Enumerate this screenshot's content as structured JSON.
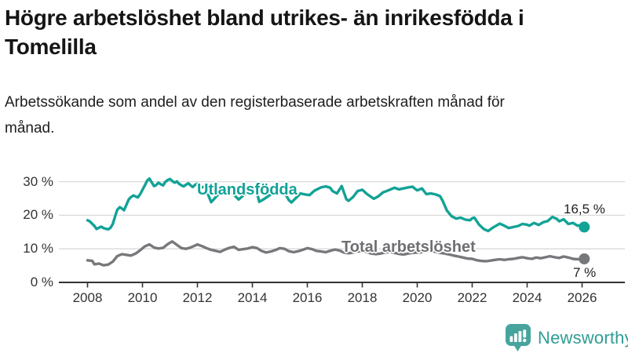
{
  "header": {
    "title": "Högre arbetslöshet bland utrikes- än inrikesfödda i Tomelilla",
    "subtitle": "Arbetssökande som andel av den registerbaserade arbetskraften månad för månad."
  },
  "footer": {
    "brand": "Newsworthy",
    "logo_icon": "bar-chart-speech-bubble-icon",
    "brand_color": "#2f9d95"
  },
  "chart_data": {
    "type": "line",
    "unit": "%",
    "grid": true,
    "x_axis": {
      "ticks": [
        2008,
        2010,
        2012,
        2014,
        2016,
        2018,
        2020,
        2022,
        2024,
        2026
      ]
    },
    "y_axis": {
      "ticks": [
        0,
        10,
        20,
        30
      ],
      "tick_suffix": " %",
      "range": [
        0,
        33
      ]
    },
    "style": {
      "grid_color": "#d9d9d9",
      "axis_color": "#333333",
      "tick_label_color": "#333333"
    },
    "series": [
      {
        "name": "Utlandsfödda",
        "color": "#12a296",
        "end_label": "16,5 %",
        "end_value": 16.5,
        "points": [
          [
            2008.0,
            18.5
          ],
          [
            2008.08,
            18.2
          ],
          [
            2008.25,
            16.8
          ],
          [
            2008.33,
            15.9
          ],
          [
            2008.42,
            16.3
          ],
          [
            2008.5,
            16.6
          ],
          [
            2008.58,
            16.2
          ],
          [
            2008.75,
            15.8
          ],
          [
            2008.83,
            16.2
          ],
          [
            2008.92,
            17.4
          ],
          [
            2009.0,
            19.6
          ],
          [
            2009.08,
            21.6
          ],
          [
            2009.17,
            22.4
          ],
          [
            2009.25,
            22.0
          ],
          [
            2009.33,
            21.5
          ],
          [
            2009.42,
            23.2
          ],
          [
            2009.5,
            24.7
          ],
          [
            2009.58,
            25.4
          ],
          [
            2009.67,
            25.9
          ],
          [
            2009.83,
            25.3
          ],
          [
            2009.92,
            26.3
          ],
          [
            2010.0,
            27.6
          ],
          [
            2010.08,
            28.8
          ],
          [
            2010.17,
            30.3
          ],
          [
            2010.25,
            30.9
          ],
          [
            2010.33,
            29.9
          ],
          [
            2010.42,
            28.7
          ],
          [
            2010.5,
            29.0
          ],
          [
            2010.58,
            29.7
          ],
          [
            2010.67,
            29.2
          ],
          [
            2010.75,
            28.9
          ],
          [
            2010.83,
            29.9
          ],
          [
            2010.92,
            30.5
          ],
          [
            2011.0,
            30.8
          ],
          [
            2011.08,
            30.2
          ],
          [
            2011.17,
            29.7
          ],
          [
            2011.25,
            30.1
          ],
          [
            2011.33,
            29.4
          ],
          [
            2011.42,
            28.9
          ],
          [
            2011.5,
            28.6
          ],
          [
            2011.58,
            29.1
          ],
          [
            2011.67,
            29.5
          ],
          [
            2011.75,
            28.9
          ],
          [
            2011.83,
            28.4
          ],
          [
            2011.92,
            29.1
          ],
          [
            2012.0,
            29.4
          ],
          [
            2012.08,
            28.7
          ],
          [
            2012.17,
            28.3
          ],
          [
            2012.25,
            28.5
          ],
          [
            2012.33,
            27.4
          ],
          [
            2012.5,
            23.9
          ],
          [
            2012.58,
            24.6
          ],
          [
            2012.75,
            26.2
          ],
          [
            2012.92,
            27.3
          ],
          [
            2013.0,
            27.9
          ],
          [
            2013.17,
            27.3
          ],
          [
            2013.33,
            26.1
          ],
          [
            2013.5,
            24.7
          ],
          [
            2013.67,
            25.9
          ],
          [
            2013.83,
            27.0
          ],
          [
            2014.0,
            27.7
          ],
          [
            2014.17,
            26.5
          ],
          [
            2014.25,
            24.0
          ],
          [
            2014.42,
            24.8
          ],
          [
            2014.58,
            25.7
          ],
          [
            2014.75,
            26.6
          ],
          [
            2014.92,
            27.2
          ],
          [
            2015.0,
            27.5
          ],
          [
            2015.17,
            26.7
          ],
          [
            2015.33,
            24.5
          ],
          [
            2015.42,
            23.8
          ],
          [
            2015.58,
            25.1
          ],
          [
            2015.75,
            26.5
          ],
          [
            2015.92,
            26.2
          ],
          [
            2016.08,
            26.0
          ],
          [
            2016.25,
            27.3
          ],
          [
            2016.5,
            28.3
          ],
          [
            2016.67,
            28.6
          ],
          [
            2016.83,
            28.2
          ],
          [
            2016.92,
            27.2
          ],
          [
            2017.08,
            26.5
          ],
          [
            2017.25,
            28.7
          ],
          [
            2017.42,
            24.8
          ],
          [
            2017.5,
            24.3
          ],
          [
            2017.67,
            25.5
          ],
          [
            2017.83,
            27.2
          ],
          [
            2018.0,
            27.6
          ],
          [
            2018.17,
            26.3
          ],
          [
            2018.42,
            24.9
          ],
          [
            2018.58,
            25.6
          ],
          [
            2018.75,
            26.8
          ],
          [
            2019.0,
            27.6
          ],
          [
            2019.17,
            28.2
          ],
          [
            2019.33,
            27.7
          ],
          [
            2019.5,
            28.0
          ],
          [
            2019.67,
            28.3
          ],
          [
            2019.83,
            28.5
          ],
          [
            2019.92,
            27.9
          ],
          [
            2020.0,
            27.4
          ],
          [
            2020.17,
            28.0
          ],
          [
            2020.33,
            26.3
          ],
          [
            2020.5,
            26.5
          ],
          [
            2020.67,
            26.2
          ],
          [
            2020.83,
            25.7
          ],
          [
            2020.92,
            24.4
          ],
          [
            2021.08,
            21.4
          ],
          [
            2021.25,
            19.7
          ],
          [
            2021.42,
            19.0
          ],
          [
            2021.58,
            19.3
          ],
          [
            2021.75,
            18.7
          ],
          [
            2021.92,
            18.5
          ],
          [
            2022.0,
            19.1
          ],
          [
            2022.08,
            19.3
          ],
          [
            2022.25,
            17.2
          ],
          [
            2022.42,
            15.9
          ],
          [
            2022.58,
            15.3
          ],
          [
            2022.75,
            16.3
          ],
          [
            2022.92,
            17.1
          ],
          [
            2023.0,
            17.5
          ],
          [
            2023.17,
            16.9
          ],
          [
            2023.33,
            16.2
          ],
          [
            2023.5,
            16.5
          ],
          [
            2023.67,
            16.8
          ],
          [
            2023.83,
            17.4
          ],
          [
            2024.0,
            17.2
          ],
          [
            2024.08,
            16.9
          ],
          [
            2024.25,
            17.7
          ],
          [
            2024.42,
            17.1
          ],
          [
            2024.58,
            17.9
          ],
          [
            2024.75,
            18.3
          ],
          [
            2024.92,
            19.5
          ],
          [
            2025.08,
            18.9
          ],
          [
            2025.17,
            18.2
          ],
          [
            2025.33,
            18.8
          ],
          [
            2025.5,
            17.4
          ],
          [
            2025.67,
            17.7
          ],
          [
            2025.83,
            16.9
          ],
          [
            2026.0,
            17.1
          ],
          [
            2026.08,
            16.5
          ]
        ]
      },
      {
        "name": "Total arbetslöshet",
        "color": "#77787b",
        "end_label": "7 %",
        "end_value": 7,
        "points": [
          [
            2008.0,
            6.6
          ],
          [
            2008.17,
            6.4
          ],
          [
            2008.25,
            5.4
          ],
          [
            2008.42,
            5.6
          ],
          [
            2008.58,
            5.1
          ],
          [
            2008.75,
            5.3
          ],
          [
            2008.92,
            6.2
          ],
          [
            2009.08,
            7.8
          ],
          [
            2009.25,
            8.4
          ],
          [
            2009.42,
            8.2
          ],
          [
            2009.58,
            8.0
          ],
          [
            2009.75,
            8.6
          ],
          [
            2009.92,
            9.6
          ],
          [
            2010.08,
            10.7
          ],
          [
            2010.25,
            11.3
          ],
          [
            2010.42,
            10.4
          ],
          [
            2010.58,
            10.1
          ],
          [
            2010.75,
            10.3
          ],
          [
            2010.92,
            11.4
          ],
          [
            2011.08,
            12.2
          ],
          [
            2011.25,
            11.2
          ],
          [
            2011.42,
            10.2
          ],
          [
            2011.58,
            10.0
          ],
          [
            2011.75,
            10.4
          ],
          [
            2011.92,
            11.0
          ],
          [
            2012.0,
            11.3
          ],
          [
            2012.17,
            10.8
          ],
          [
            2012.33,
            10.2
          ],
          [
            2012.5,
            9.7
          ],
          [
            2012.67,
            9.4
          ],
          [
            2012.83,
            9.1
          ],
          [
            2013.0,
            9.8
          ],
          [
            2013.17,
            10.3
          ],
          [
            2013.33,
            10.6
          ],
          [
            2013.5,
            9.7
          ],
          [
            2013.67,
            9.9
          ],
          [
            2013.83,
            10.1
          ],
          [
            2014.0,
            10.5
          ],
          [
            2014.17,
            10.2
          ],
          [
            2014.33,
            9.4
          ],
          [
            2014.5,
            8.9
          ],
          [
            2014.67,
            9.2
          ],
          [
            2014.83,
            9.6
          ],
          [
            2015.0,
            10.2
          ],
          [
            2015.17,
            10.0
          ],
          [
            2015.33,
            9.3
          ],
          [
            2015.5,
            9.0
          ],
          [
            2015.67,
            9.3
          ],
          [
            2015.83,
            9.7
          ],
          [
            2016.0,
            10.2
          ],
          [
            2016.17,
            9.9
          ],
          [
            2016.33,
            9.4
          ],
          [
            2016.5,
            9.2
          ],
          [
            2016.67,
            9.0
          ],
          [
            2016.83,
            9.4
          ],
          [
            2017.0,
            9.8
          ],
          [
            2017.17,
            9.5
          ],
          [
            2017.33,
            8.9
          ],
          [
            2017.5,
            8.7
          ],
          [
            2017.67,
            8.9
          ],
          [
            2017.83,
            9.2
          ],
          [
            2018.0,
            9.4
          ],
          [
            2018.17,
            9.0
          ],
          [
            2018.33,
            8.6
          ],
          [
            2018.5,
            8.4
          ],
          [
            2018.67,
            8.6
          ],
          [
            2018.83,
            8.9
          ],
          [
            2019.0,
            9.1
          ],
          [
            2019.17,
            8.8
          ],
          [
            2019.33,
            8.5
          ],
          [
            2019.5,
            8.3
          ],
          [
            2019.67,
            8.6
          ],
          [
            2019.83,
            8.8
          ],
          [
            2020.0,
            8.9
          ],
          [
            2020.17,
            9.0
          ],
          [
            2020.33,
            9.6
          ],
          [
            2020.5,
            9.4
          ],
          [
            2020.67,
            9.1
          ],
          [
            2020.83,
            8.8
          ],
          [
            2021.0,
            8.6
          ],
          [
            2021.17,
            8.3
          ],
          [
            2021.33,
            8.0
          ],
          [
            2021.5,
            7.7
          ],
          [
            2021.67,
            7.4
          ],
          [
            2021.83,
            7.1
          ],
          [
            2022.0,
            7.0
          ],
          [
            2022.17,
            6.6
          ],
          [
            2022.33,
            6.4
          ],
          [
            2022.5,
            6.3
          ],
          [
            2022.67,
            6.5
          ],
          [
            2022.83,
            6.7
          ],
          [
            2023.0,
            6.9
          ],
          [
            2023.17,
            6.7
          ],
          [
            2023.33,
            6.9
          ],
          [
            2023.5,
            7.0
          ],
          [
            2023.67,
            7.3
          ],
          [
            2023.83,
            7.5
          ],
          [
            2024.0,
            7.2
          ],
          [
            2024.17,
            7.0
          ],
          [
            2024.33,
            7.4
          ],
          [
            2024.5,
            7.2
          ],
          [
            2024.67,
            7.5
          ],
          [
            2024.83,
            7.8
          ],
          [
            2025.0,
            7.5
          ],
          [
            2025.17,
            7.3
          ],
          [
            2025.33,
            7.7
          ],
          [
            2025.5,
            7.4
          ],
          [
            2025.67,
            7.0
          ],
          [
            2025.83,
            6.9
          ],
          [
            2026.0,
            7.0
          ],
          [
            2026.08,
            7.0
          ]
        ]
      }
    ]
  }
}
